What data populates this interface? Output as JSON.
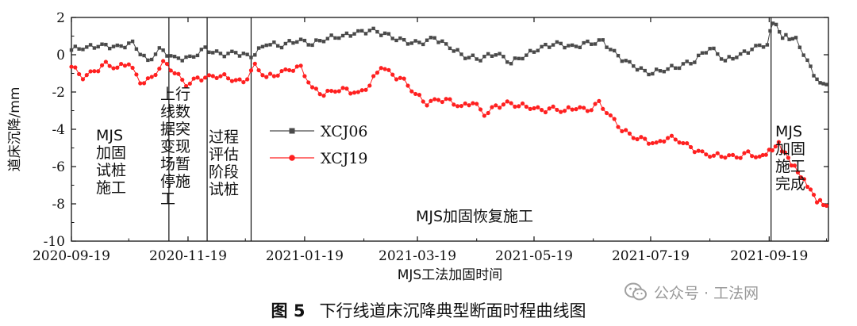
{
  "chart_data": {
    "type": "line",
    "xlabel": "MJS工法加固时间",
    "ylabel": "道床沉降/mm",
    "ylim": [
      -10,
      2
    ],
    "yticks": [
      2,
      0,
      -2,
      -4,
      -6,
      -8,
      -10
    ],
    "xlim": [
      "2020-09-19",
      "2021-10-20"
    ],
    "xticks": [
      "2020-09-19",
      "2020-11-19",
      "2021-01-19",
      "2021-03-19",
      "2021-05-19",
      "2021-07-19",
      "2021-09-19"
    ],
    "grid": false,
    "legend_position": "upper-left-center",
    "series": [
      {
        "name": "XCJ06",
        "color": "#4a4a4a",
        "marker": "square",
        "points": [
          [
            "2020-09-19",
            0.3
          ],
          [
            "2020-09-27",
            0.4
          ],
          [
            "2020-10-05",
            0.5
          ],
          [
            "2020-10-13",
            0.4
          ],
          [
            "2020-10-21",
            0.6
          ],
          [
            "2020-10-29",
            -0.4
          ],
          [
            "2020-11-04",
            0.3
          ],
          [
            "2020-11-12",
            -0.2
          ],
          [
            "2020-11-20",
            -0.2
          ],
          [
            "2020-11-28",
            0.3
          ],
          [
            "2020-12-06",
            0.0
          ],
          [
            "2020-12-14",
            0.1
          ],
          [
            "2020-12-22",
            -0.1
          ],
          [
            "2020-12-30",
            0.6
          ],
          [
            "2021-01-07",
            0.5
          ],
          [
            "2021-01-15",
            0.8
          ],
          [
            "2021-01-23",
            0.6
          ],
          [
            "2021-01-31",
            0.9
          ],
          [
            "2021-02-08",
            1.0
          ],
          [
            "2021-02-16",
            1.2
          ],
          [
            "2021-02-24",
            1.3
          ],
          [
            "2021-03-04",
            1.0
          ],
          [
            "2021-03-12",
            0.7
          ],
          [
            "2021-03-20",
            0.6
          ],
          [
            "2021-03-28",
            0.9
          ],
          [
            "2021-04-05",
            0.4
          ],
          [
            "2021-04-13",
            -0.1
          ],
          [
            "2021-04-21",
            -0.2
          ],
          [
            "2021-04-29",
            0.1
          ],
          [
            "2021-05-07",
            -0.4
          ],
          [
            "2021-05-15",
            0.0
          ],
          [
            "2021-05-23",
            0.4
          ],
          [
            "2021-05-31",
            0.6
          ],
          [
            "2021-06-08",
            0.4
          ],
          [
            "2021-06-16",
            0.6
          ],
          [
            "2021-06-24",
            0.7
          ],
          [
            "2021-07-02",
            -0.1
          ],
          [
            "2021-07-10",
            -0.6
          ],
          [
            "2021-07-18",
            -1.0
          ],
          [
            "2021-07-26",
            -0.8
          ],
          [
            "2021-08-03",
            -0.6
          ],
          [
            "2021-08-11",
            -0.3
          ],
          [
            "2021-08-19",
            0.4
          ],
          [
            "2021-08-27",
            -0.3
          ],
          [
            "2021-09-04",
            0.0
          ],
          [
            "2021-09-12",
            0.4
          ],
          [
            "2021-09-18",
            0.6
          ],
          [
            "2021-09-21",
            1.8
          ],
          [
            "2021-09-26",
            1.0
          ],
          [
            "2021-10-03",
            0.8
          ],
          [
            "2021-10-09",
            -0.3
          ],
          [
            "2021-10-14",
            -1.4
          ],
          [
            "2021-10-19",
            -1.6
          ]
        ]
      },
      {
        "name": "XCJ19",
        "color": "#ff2020",
        "marker": "circle",
        "points": [
          [
            "2020-09-19",
            -0.6
          ],
          [
            "2020-09-25",
            -1.2
          ],
          [
            "2020-10-01",
            -0.9
          ],
          [
            "2020-10-07",
            -0.5
          ],
          [
            "2020-10-13",
            -0.7
          ],
          [
            "2020-10-19",
            -0.4
          ],
          [
            "2020-10-25",
            -1.5
          ],
          [
            "2020-10-31",
            -1.3
          ],
          [
            "2020-11-06",
            -0.4
          ],
          [
            "2020-11-12",
            -0.9
          ],
          [
            "2020-11-18",
            -1.6
          ],
          [
            "2020-11-24",
            -1.3
          ],
          [
            "2020-11-30",
            -1.2
          ],
          [
            "2020-12-06",
            -1.1
          ],
          [
            "2020-12-12",
            -1.3
          ],
          [
            "2020-12-18",
            -1.5
          ],
          [
            "2020-12-24",
            -0.6
          ],
          [
            "2020-12-30",
            -1.2
          ],
          [
            "2021-01-05",
            -1.0
          ],
          [
            "2021-01-11",
            -0.8
          ],
          [
            "2021-01-17",
            -0.7
          ],
          [
            "2021-01-23",
            -1.8
          ],
          [
            "2021-01-29",
            -2.1
          ],
          [
            "2021-02-04",
            -1.9
          ],
          [
            "2021-02-10",
            -1.9
          ],
          [
            "2021-02-16",
            -2.1
          ],
          [
            "2021-02-22",
            -1.6
          ],
          [
            "2021-02-28",
            -0.6
          ],
          [
            "2021-03-06",
            -1.1
          ],
          [
            "2021-03-12",
            -1.4
          ],
          [
            "2021-03-18",
            -2.1
          ],
          [
            "2021-03-24",
            -2.6
          ],
          [
            "2021-03-30",
            -2.4
          ],
          [
            "2021-04-05",
            -2.5
          ],
          [
            "2021-04-11",
            -2.8
          ],
          [
            "2021-04-17",
            -2.5
          ],
          [
            "2021-04-23",
            -3.2
          ],
          [
            "2021-04-29",
            -2.8
          ],
          [
            "2021-05-05",
            -2.6
          ],
          [
            "2021-05-11",
            -2.7
          ],
          [
            "2021-05-17",
            -2.8
          ],
          [
            "2021-05-23",
            -3.0
          ],
          [
            "2021-05-29",
            -2.9
          ],
          [
            "2021-06-04",
            -3.0
          ],
          [
            "2021-06-10",
            -2.8
          ],
          [
            "2021-06-16",
            -3.0
          ],
          [
            "2021-06-22",
            -2.6
          ],
          [
            "2021-06-28",
            -3.3
          ],
          [
            "2021-07-04",
            -4.0
          ],
          [
            "2021-07-10",
            -4.4
          ],
          [
            "2021-07-16",
            -4.6
          ],
          [
            "2021-07-22",
            -4.8
          ],
          [
            "2021-07-28",
            -4.4
          ],
          [
            "2021-08-03",
            -4.6
          ],
          [
            "2021-08-09",
            -5.0
          ],
          [
            "2021-08-15",
            -5.3
          ],
          [
            "2021-08-21",
            -5.4
          ],
          [
            "2021-08-27",
            -5.4
          ],
          [
            "2021-09-02",
            -5.5
          ],
          [
            "2021-09-08",
            -5.3
          ],
          [
            "2021-09-14",
            -5.5
          ],
          [
            "2021-09-19",
            -5.2
          ],
          [
            "2021-09-24",
            -4.8
          ],
          [
            "2021-09-29",
            -5.6
          ],
          [
            "2021-10-04",
            -6.3
          ],
          [
            "2021-10-09",
            -7.0
          ],
          [
            "2021-10-14",
            -7.8
          ],
          [
            "2021-10-19",
            -8.1
          ]
        ]
      }
    ],
    "phase_boundaries": [
      "2020-11-09",
      "2020-11-29",
      "2020-12-22",
      "2021-09-20"
    ],
    "phase_labels": [
      {
        "key": "p1",
        "text": "MJS\n加固\n试桩\n施工"
      },
      {
        "key": "p2",
        "text": "上行\n线数\n据突\n变现\n场暂\n停施\n工"
      },
      {
        "key": "p3",
        "text": "过程\n评估\n阶段\n试桩"
      },
      {
        "key": "p4",
        "text": "MJS加固恢复施工"
      },
      {
        "key": "p5",
        "text": "MJS\n加固\n施工\n完成"
      }
    ]
  },
  "caption": {
    "figure_no": "图 5",
    "title": "下行线道床沉降典型断面时程曲线图"
  },
  "watermark": {
    "text": "公众号 · 工法网"
  }
}
